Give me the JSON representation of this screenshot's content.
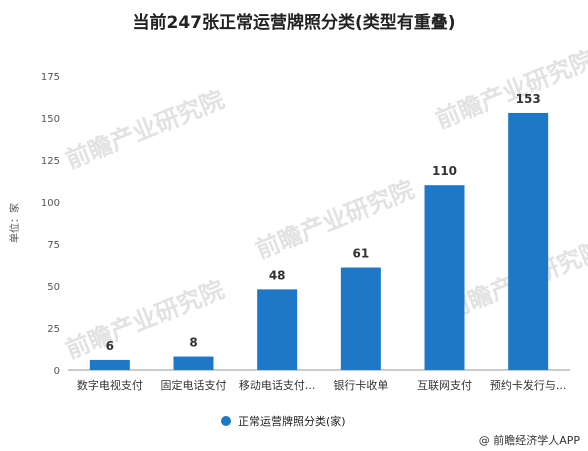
{
  "chart_data": {
    "type": "bar",
    "title": "当前247张正常运营牌照分类(类型有重叠)",
    "ylabel": "单位：家",
    "categories": [
      "数字电视支付",
      "固定电话支付",
      "移动电话支付...",
      "银行卡收单",
      "互联网支付",
      "预约卡发行与..."
    ],
    "series": [
      {
        "name": "正常运营牌照分类(家)",
        "values": [
          6,
          8,
          48,
          61,
          110,
          153
        ]
      }
    ],
    "ylim": [
      0,
      175
    ],
    "yticks": [
      0,
      25,
      50,
      75,
      100,
      125,
      150,
      175
    ],
    "grid": false,
    "legend": "bottom",
    "bar_color": "#1f77c8"
  },
  "source": "@ 前瞻经济学人APP",
  "watermark": "前瞻产业研究院"
}
